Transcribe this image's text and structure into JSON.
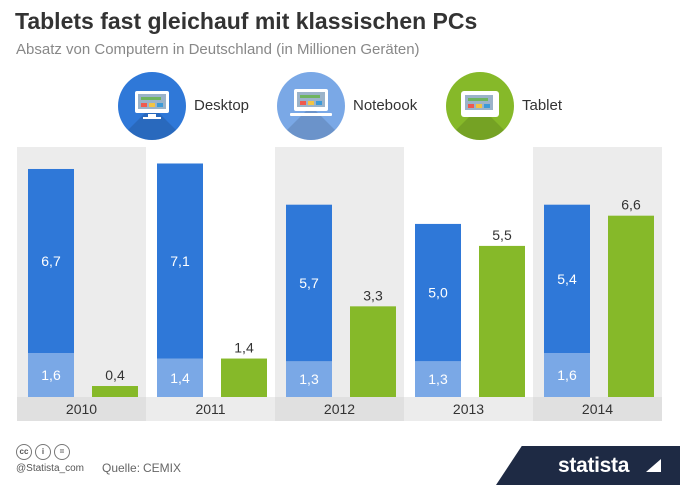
{
  "header": {
    "title": "Tablets fast gleichauf mit klassischen PCs",
    "subtitle": "Absatz von Computern in Deutschland (in Millionen Geräten)"
  },
  "legend": {
    "desktop": {
      "label": "Desktop",
      "color": "#2f78d8",
      "icon": "desktop-icon"
    },
    "notebook": {
      "label": "Notebook",
      "color": "#7aa8e6",
      "icon": "notebook-icon"
    },
    "tablet": {
      "label": "Tablet",
      "color": "#86b929",
      "icon": "tablet-icon"
    }
  },
  "footer": {
    "handle": "@Statista_com",
    "source_label": "Quelle:",
    "source_value": "CEMIX",
    "brand": "statista",
    "license_icons": [
      "cc-icon",
      "attribution-icon",
      "noderivs-icon"
    ]
  },
  "chart_data": {
    "type": "bar",
    "categories": [
      "2010",
      "2011",
      "2012",
      "2013",
      "2014"
    ],
    "ylim": [
      0,
      9.1
    ],
    "stacks": [
      {
        "name": "Desktop",
        "color": "#2f78d8",
        "values": [
          6.7,
          7.1,
          5.7,
          5.0,
          5.4
        ],
        "labels": [
          "6,7",
          "7,1",
          "5,7",
          "5,0",
          "5,4"
        ]
      },
      {
        "name": "Notebook",
        "color": "#7aa8e6",
        "values": [
          1.6,
          1.4,
          1.3,
          1.3,
          1.6
        ],
        "labels": [
          "1,6",
          "1,4",
          "1,3",
          "1,3",
          "1,6"
        ]
      }
    ],
    "series": [
      {
        "name": "Tablet",
        "color": "#86b929",
        "values": [
          0.4,
          1.4,
          3.3,
          5.5,
          6.6
        ],
        "labels": [
          "0,4",
          "1,4",
          "3,3",
          "5,5",
          "6,6"
        ]
      }
    ],
    "grid": false,
    "legend_position": "top"
  }
}
